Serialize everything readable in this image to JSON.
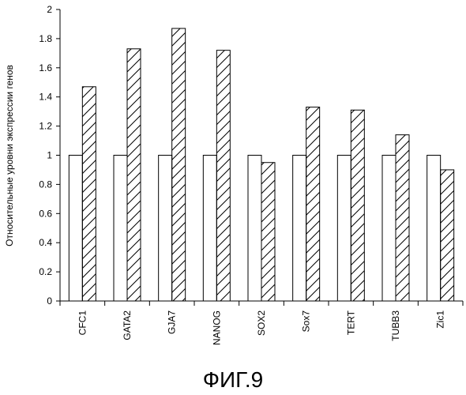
{
  "chart_data": {
    "type": "bar",
    "categories": [
      "CFC1",
      "GATA2",
      "GJA7",
      "NANOG",
      "SOX2",
      "Sox7",
      "TERT",
      "TUBB3",
      "Zic1"
    ],
    "series": [
      {
        "name": "",
        "pattern": "solid-white",
        "values": [
          1.0,
          1.0,
          1.0,
          1.0,
          1.0,
          1.0,
          1.0,
          1.0,
          1.0
        ]
      },
      {
        "name": "",
        "pattern": "hatched",
        "values": [
          1.47,
          1.73,
          1.87,
          1.72,
          0.95,
          1.33,
          1.31,
          1.14,
          0.9
        ]
      }
    ],
    "title": "",
    "xlabel": "",
    "ylabel": "Относительные уровни экспрессии генов",
    "ylim": [
      0,
      2
    ],
    "yticks": [
      "0",
      "0.2",
      "0.4",
      "0.6",
      "0.8",
      "1",
      "1.2",
      "1.4",
      "1.6",
      "1.8",
      "2"
    ],
    "grid": false,
    "legend": "none"
  },
  "caption": "ФИГ.9"
}
